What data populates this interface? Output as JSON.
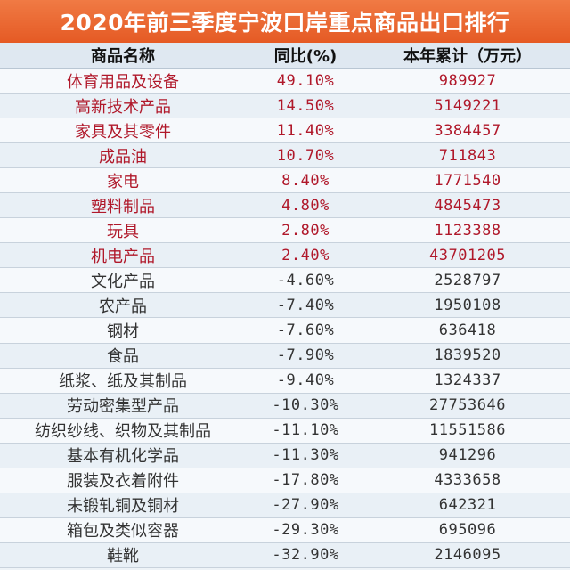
{
  "title": "2020年前三季度宁波口岸重点商品出口排行",
  "headers": {
    "name": "商品名称",
    "yoy": "同比(%)",
    "total": "本年累计（万元）"
  },
  "colors": {
    "title_bg": "#e8622c",
    "positive_text": "#b0182a",
    "negative_text": "#333333"
  },
  "rows": [
    {
      "name": "体育用品及设备",
      "yoy": "49.10%",
      "total": "989927",
      "trend": "up"
    },
    {
      "name": "高新技术产品",
      "yoy": "14.50%",
      "total": "5149221",
      "trend": "up"
    },
    {
      "name": "家具及其零件",
      "yoy": "11.40%",
      "total": "3384457",
      "trend": "up"
    },
    {
      "name": "成品油",
      "yoy": "10.70%",
      "total": "711843",
      "trend": "up"
    },
    {
      "name": "家电",
      "yoy": "8.40%",
      "total": "1771540",
      "trend": "up"
    },
    {
      "name": "塑料制品",
      "yoy": "4.80%",
      "total": "4845473",
      "trend": "up"
    },
    {
      "name": "玩具",
      "yoy": "2.80%",
      "total": "1123388",
      "trend": "up"
    },
    {
      "name": "机电产品",
      "yoy": "2.40%",
      "total": "43701205",
      "trend": "up"
    },
    {
      "name": "文化产品",
      "yoy": "-4.60%",
      "total": "2528797",
      "trend": "down"
    },
    {
      "name": "农产品",
      "yoy": "-7.40%",
      "total": "1950108",
      "trend": "down"
    },
    {
      "name": "钢材",
      "yoy": "-7.60%",
      "total": "636418",
      "trend": "down"
    },
    {
      "name": "食品",
      "yoy": "-7.90%",
      "total": "1839520",
      "trend": "down"
    },
    {
      "name": "纸浆、纸及其制品",
      "yoy": "-9.40%",
      "total": "1324337",
      "trend": "down"
    },
    {
      "name": "劳动密集型产品",
      "yoy": "-10.30%",
      "total": "27753646",
      "trend": "down"
    },
    {
      "name": "纺织纱线、织物及其制品",
      "yoy": "-11.10%",
      "total": "11551586",
      "trend": "down"
    },
    {
      "name": "基本有机化学品",
      "yoy": "-11.30%",
      "total": "941296",
      "trend": "down"
    },
    {
      "name": "服装及衣着附件",
      "yoy": "-17.80%",
      "total": "4333658",
      "trend": "down"
    },
    {
      "name": "未锻轧铜及铜材",
      "yoy": "-27.90%",
      "total": "642321",
      "trend": "down"
    },
    {
      "name": "箱包及类似容器",
      "yoy": "-29.30%",
      "total": "695096",
      "trend": "down"
    },
    {
      "name": "鞋靴",
      "yoy": "-32.90%",
      "total": "2146095",
      "trend": "down"
    }
  ]
}
